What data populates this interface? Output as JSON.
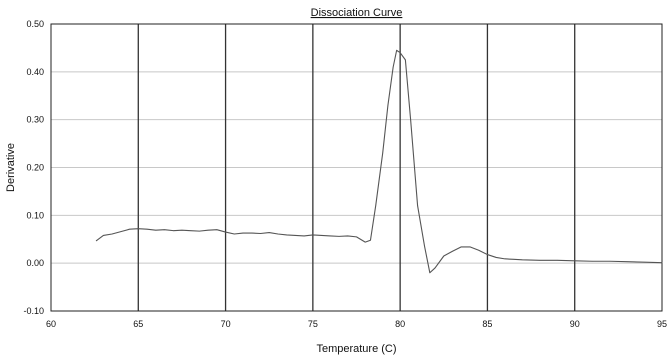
{
  "chart_data": {
    "type": "line",
    "title": "Dissociation Curve",
    "xlabel": "Temperature (C)",
    "ylabel": "Derivative",
    "xlim": [
      60,
      95
    ],
    "ylim": [
      -0.1,
      0.5
    ],
    "x_ticks": [
      60,
      65,
      70,
      75,
      80,
      85,
      90,
      95
    ],
    "x_tick_labels": [
      "60",
      "65",
      "70",
      "75",
      "80",
      "85",
      "90",
      "95"
    ],
    "y_ticks": [
      -0.1,
      0.0,
      0.1,
      0.2,
      0.3,
      0.4,
      0.5
    ],
    "y_tick_labels": [
      "-0.10",
      "0.00",
      "0.10",
      "0.20",
      "0.30",
      "0.40",
      "0.50"
    ],
    "grid": {
      "vertical": true,
      "horizontal": true
    },
    "colors": {
      "background": "#ffffff",
      "frame": "#222222",
      "vertical_grid": "#333333",
      "horizontal_grid": "#c8c8c8",
      "series": "#555555",
      "text": "#111111"
    },
    "series": [
      {
        "x": [
          62.6,
          63.0,
          63.5,
          64.0,
          64.5,
          65.0,
          65.5,
          66.0,
          66.5,
          67.0,
          67.5,
          68.0,
          68.5,
          69.0,
          69.5,
          70.0,
          70.5,
          71.0,
          71.5,
          72.0,
          72.5,
          73.0,
          73.5,
          74.0,
          74.5,
          75.0,
          75.5,
          76.0,
          76.5,
          77.0,
          77.5,
          78.0,
          78.3,
          78.6,
          79.0,
          79.3,
          79.6,
          79.8,
          80.0,
          80.3,
          80.6,
          81.0,
          81.4,
          81.7,
          82.0,
          82.5,
          83.0,
          83.5,
          84.0,
          84.5,
          85.0,
          85.5,
          86.0,
          86.5,
          87.0,
          88.0,
          89.0,
          90.0,
          91.0,
          92.0,
          93.0,
          94.0,
          95.0
        ],
        "y": [
          0.047,
          0.058,
          0.061,
          0.066,
          0.071,
          0.072,
          0.071,
          0.069,
          0.07,
          0.068,
          0.069,
          0.068,
          0.067,
          0.069,
          0.07,
          0.065,
          0.061,
          0.063,
          0.063,
          0.062,
          0.064,
          0.061,
          0.059,
          0.058,
          0.057,
          0.059,
          0.058,
          0.057,
          0.056,
          0.057,
          0.055,
          0.044,
          0.048,
          0.12,
          0.23,
          0.33,
          0.41,
          0.445,
          0.44,
          0.425,
          0.3,
          0.12,
          0.035,
          -0.02,
          -0.01,
          0.015,
          0.025,
          0.034,
          0.034,
          0.027,
          0.018,
          0.012,
          0.009,
          0.008,
          0.007,
          0.006,
          0.006,
          0.005,
          0.004,
          0.004,
          0.003,
          0.002,
          0.001
        ]
      }
    ]
  }
}
